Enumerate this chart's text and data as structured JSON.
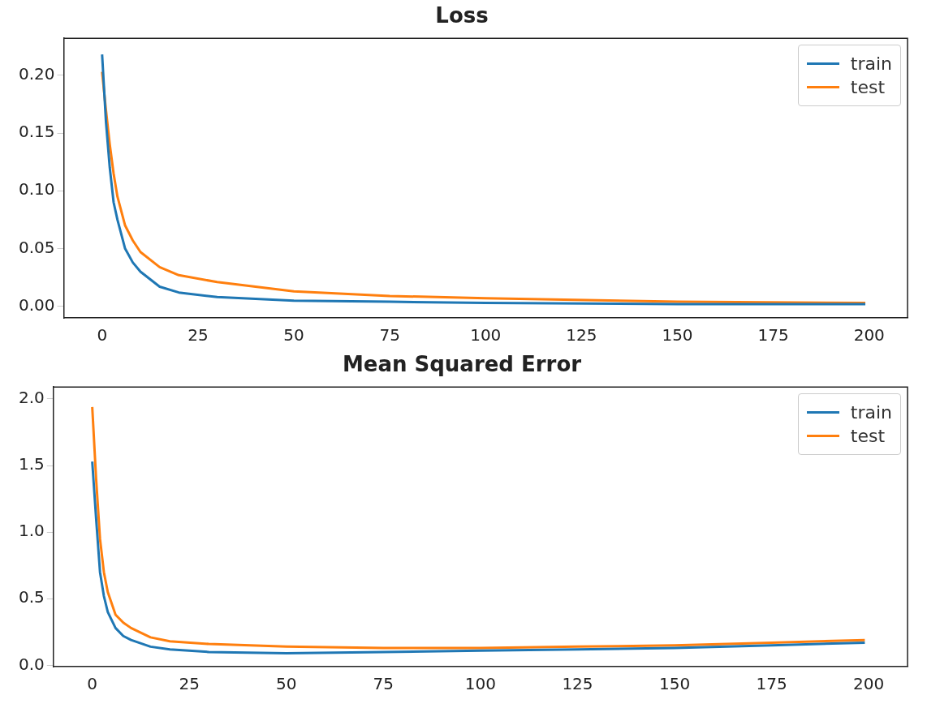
{
  "chart_data": [
    {
      "type": "line",
      "title": "Loss",
      "legend": "top right",
      "grid": false,
      "xlim": [
        -10,
        210
      ],
      "xticks": [
        0,
        25,
        50,
        75,
        100,
        125,
        150,
        175,
        200
      ],
      "ylim": [
        -0.01,
        0.232
      ],
      "yticks": [
        {
          "value": 0,
          "label": "0.00"
        },
        {
          "value": 0.05,
          "label": "0.05"
        },
        {
          "value": 0.1,
          "label": "0.10"
        },
        {
          "value": 0.15,
          "label": "0.15"
        },
        {
          "value": 0.2,
          "label": "0.20"
        }
      ],
      "series": [
        {
          "name": "train",
          "color": "#1f77b4",
          "x": [
            0,
            1,
            2,
            3,
            4,
            6,
            8,
            10,
            15,
            20,
            30,
            50,
            75,
            100,
            150,
            199
          ],
          "values": [
            0.218,
            0.16,
            0.12,
            0.09,
            0.075,
            0.05,
            0.038,
            0.03,
            0.017,
            0.012,
            0.008,
            0.005,
            0.004,
            0.003,
            0.002,
            0.002
          ]
        },
        {
          "name": "test",
          "color": "#ff7f0e",
          "x": [
            0,
            1,
            2,
            3,
            4,
            6,
            8,
            10,
            15,
            20,
            30,
            50,
            75,
            100,
            150,
            199
          ],
          "values": [
            0.203,
            0.17,
            0.14,
            0.115,
            0.095,
            0.07,
            0.057,
            0.047,
            0.034,
            0.027,
            0.021,
            0.013,
            0.009,
            0.007,
            0.004,
            0.003
          ]
        }
      ]
    },
    {
      "type": "line",
      "title": "Mean Squared Error",
      "legend": "top right",
      "grid": false,
      "xlim": [
        -10,
        210
      ],
      "xticks": [
        0,
        25,
        50,
        75,
        100,
        125,
        150,
        175,
        200
      ],
      "ylim": [
        -0.01,
        2.09
      ],
      "yticks": [
        {
          "value": 0,
          "label": "0.0"
        },
        {
          "value": 0.5,
          "label": "0.5"
        },
        {
          "value": 1,
          "label": "1.0"
        },
        {
          "value": 1.5,
          "label": "1.5"
        },
        {
          "value": 2,
          "label": "2.0"
        }
      ],
      "series": [
        {
          "name": "train",
          "color": "#1f77b4",
          "x": [
            0,
            1,
            2,
            3,
            4,
            6,
            8,
            10,
            15,
            20,
            30,
            50,
            75,
            100,
            125,
            150,
            175,
            199
          ],
          "values": [
            1.53,
            1.1,
            0.7,
            0.52,
            0.4,
            0.28,
            0.22,
            0.19,
            0.14,
            0.12,
            0.1,
            0.09,
            0.1,
            0.11,
            0.12,
            0.13,
            0.15,
            0.17
          ]
        },
        {
          "name": "test",
          "color": "#ff7f0e",
          "x": [
            0,
            1,
            2,
            3,
            4,
            6,
            8,
            10,
            15,
            20,
            30,
            50,
            75,
            100,
            125,
            150,
            175,
            199
          ],
          "values": [
            1.94,
            1.4,
            0.95,
            0.7,
            0.55,
            0.38,
            0.32,
            0.28,
            0.21,
            0.18,
            0.16,
            0.14,
            0.13,
            0.13,
            0.14,
            0.15,
            0.17,
            0.19
          ]
        }
      ]
    }
  ]
}
